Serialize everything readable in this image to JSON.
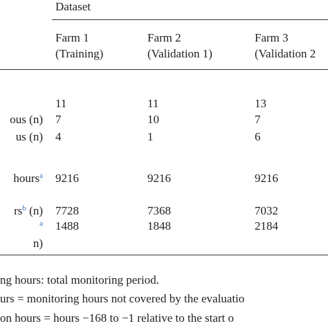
{
  "table": {
    "group_header": "Dataset",
    "columns": [
      {
        "name": "Farm 1",
        "sub": "(Training)"
      },
      {
        "name": "Farm 2",
        "sub": "(Validation 1)"
      },
      {
        "name": "Farm 3",
        "sub": "(Validation 2"
      }
    ],
    "rows": [
      {
        "values": [
          "11",
          "11",
          "13"
        ]
      },
      {
        "label": "ous (n)",
        "values": [
          "7",
          "10",
          "7"
        ]
      },
      {
        "label": "us (n)",
        "values": [
          "4",
          "1",
          "6"
        ]
      },
      {
        "label": "hours",
        "sup": "a",
        "values": [
          "9216",
          "9216",
          "9216"
        ]
      },
      {
        "label": "rs",
        "sup": "b",
        "label_end": " (n)",
        "values": [
          "7728",
          "7368",
          "7032"
        ]
      },
      {
        "sup": "a",
        "values": [
          "1488",
          "1848",
          "2184"
        ]
      },
      {
        "label": "n)"
      }
    ]
  },
  "footnotes": [
    "ng hours: total monitoring period.",
    "urs = monitoring hours not covered by the evaluatio",
    "on hours = hours −168 to −1 relative to the start o"
  ]
}
